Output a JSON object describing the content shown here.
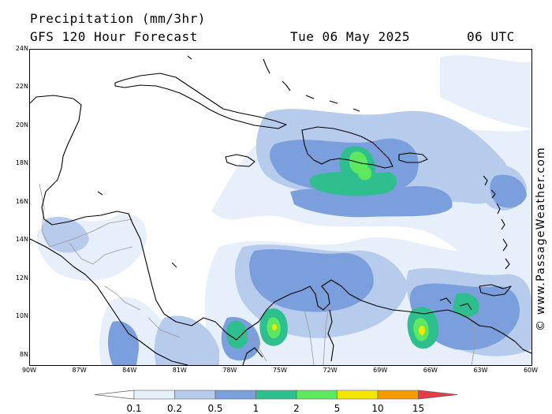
{
  "header": {
    "title": "Precipitation (mm/3hr)",
    "subtitle": "GFS 120 Hour Forecast",
    "valid_date": "Tue 06 May 2025",
    "valid_time": "06 UTC"
  },
  "watermark": "© www.PassageWeather.com",
  "map": {
    "lon_range": [
      -90,
      -60
    ],
    "lat_range": [
      7.5,
      24
    ],
    "lat_labels": [
      {
        "lat": 24,
        "text": "24N"
      },
      {
        "lat": 22,
        "text": "22N"
      },
      {
        "lat": 20,
        "text": "20N"
      },
      {
        "lat": 18,
        "text": "18N"
      },
      {
        "lat": 16,
        "text": "16N"
      },
      {
        "lat": 14,
        "text": "14N"
      },
      {
        "lat": 12,
        "text": "12N"
      },
      {
        "lat": 10,
        "text": "10N"
      },
      {
        "lat": 8,
        "text": "8N"
      }
    ],
    "lon_labels": [
      {
        "lon": -90,
        "text": "90W"
      },
      {
        "lon": -87,
        "text": "87W"
      },
      {
        "lon": -84,
        "text": "84W"
      },
      {
        "lon": -81,
        "text": "81W"
      },
      {
        "lon": -78,
        "text": "78W"
      },
      {
        "lon": -75,
        "text": "75W"
      },
      {
        "lon": -72,
        "text": "72W"
      },
      {
        "lon": -69,
        "text": "69W"
      },
      {
        "lon": -66,
        "text": "66W"
      },
      {
        "lon": -63,
        "text": "63W"
      },
      {
        "lon": -60,
        "text": "60W"
      }
    ],
    "coast_color": "#000000",
    "border_color": "#9a9a9a"
  },
  "legend": {
    "colors": [
      "#ffffff",
      "#e6effa",
      "#b7cbec",
      "#7a9fdc",
      "#2fbf8f",
      "#5de860",
      "#f5e600",
      "#f59a00",
      "#e83b45"
    ],
    "labels": [
      "0.1",
      "0.2",
      "0.5",
      "1",
      "2",
      "5",
      "10",
      "15"
    ]
  }
}
